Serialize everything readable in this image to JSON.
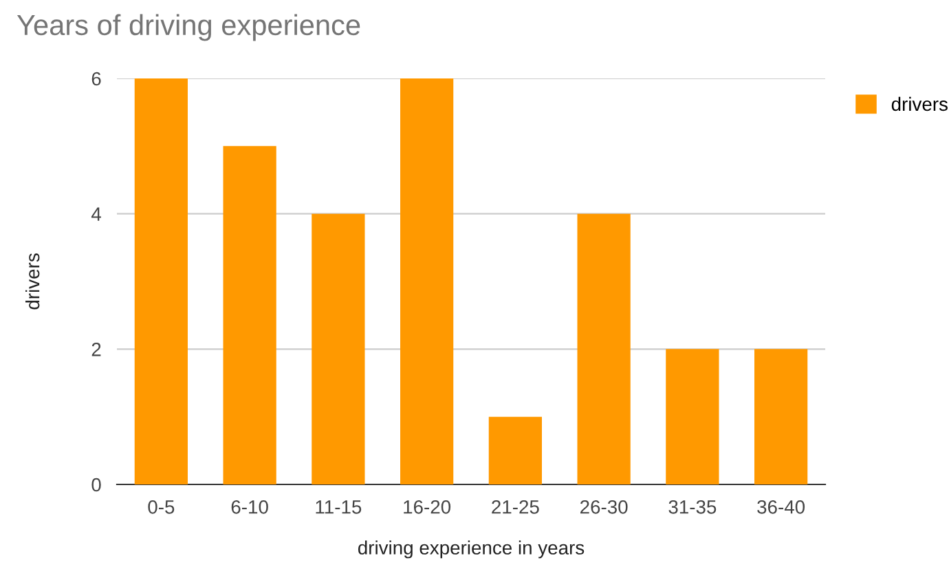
{
  "chart_data": {
    "type": "bar",
    "title": "Years of driving experience",
    "xlabel": "driving experience in years",
    "ylabel": "drivers",
    "categories": [
      "0-5",
      "6-10",
      "11-15",
      "16-20",
      "21-25",
      "26-30",
      "31-35",
      "36-40"
    ],
    "series": [
      {
        "name": "drivers",
        "color": "#ff9900",
        "values": [
          6,
          5,
          4,
          6,
          1,
          4,
          2,
          2
        ]
      }
    ],
    "ylim": [
      0,
      6
    ],
    "yticks": [
      0,
      2,
      4,
      6
    ],
    "grid": "y",
    "legend": "right"
  }
}
